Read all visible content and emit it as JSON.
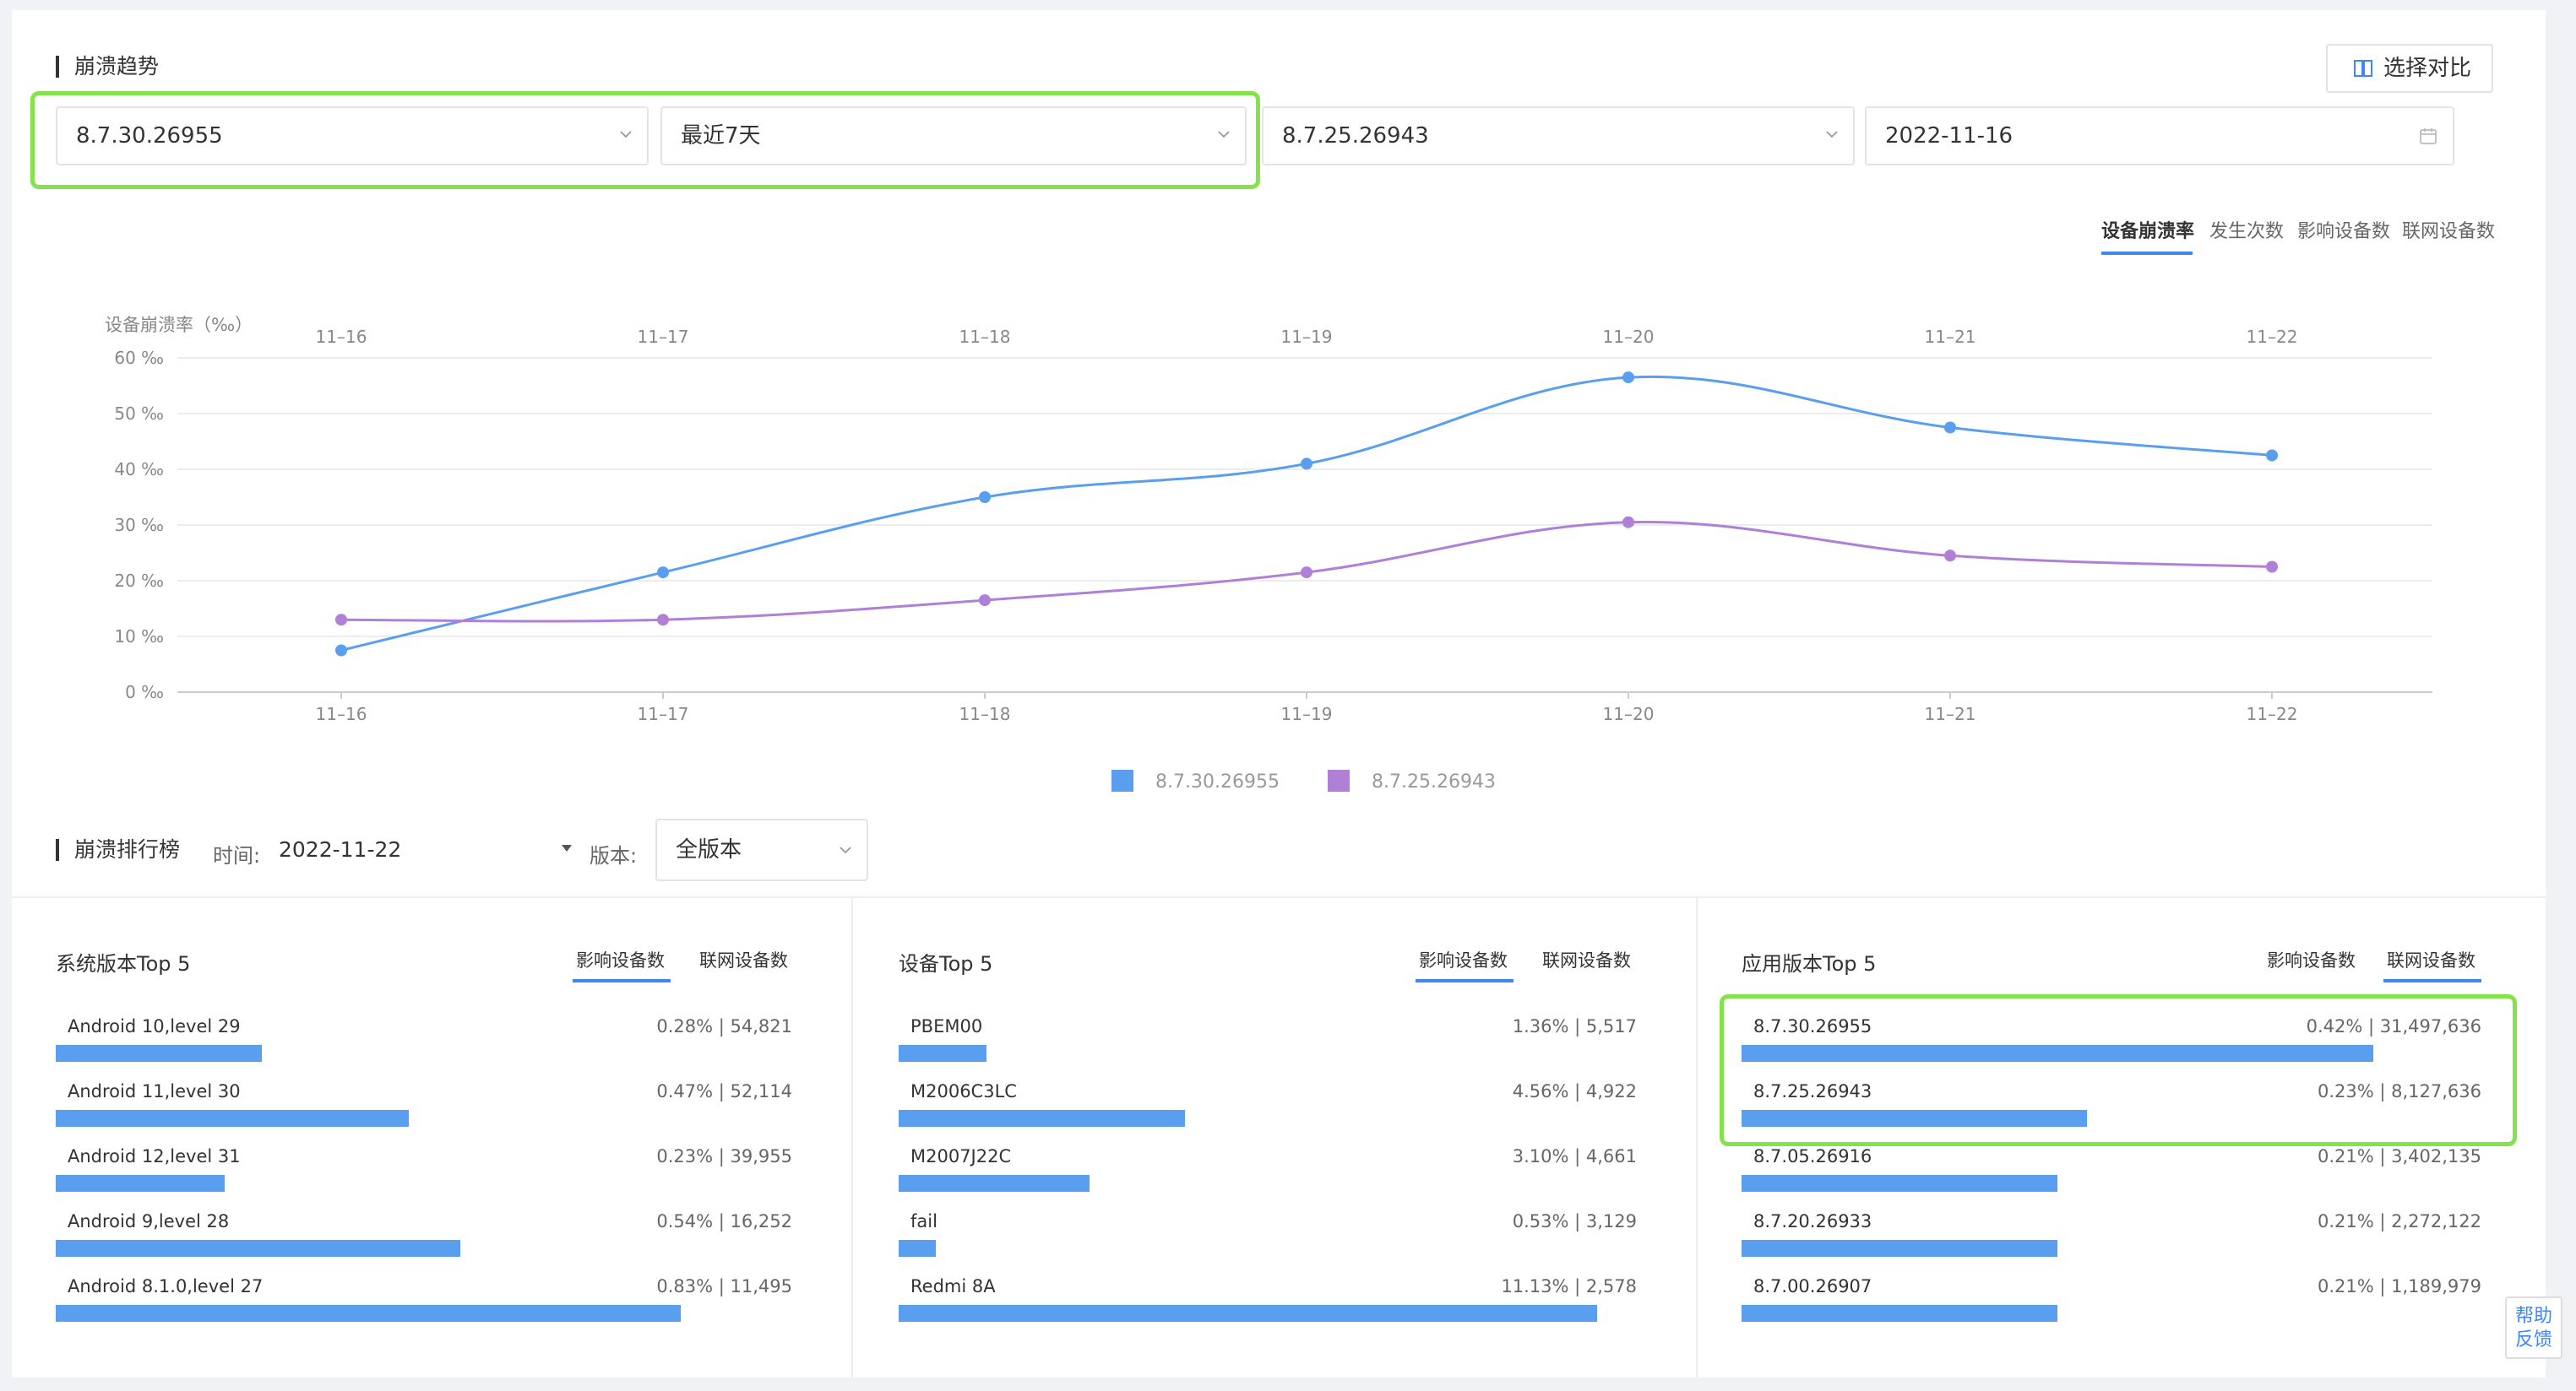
{
  "trend": {
    "title": "崩溃趋势",
    "compare_button": "选择对比",
    "version_a": "8.7.30.26955",
    "range_a": "最近7天",
    "version_b": "8.7.25.26943",
    "date_b": "2022-11-16",
    "metric_tabs": [
      "设备崩溃率",
      "发生次数",
      "影响设备数",
      "联网设备数"
    ],
    "active_metric": 0
  },
  "chart_data": {
    "type": "line",
    "ylabel": "设备崩溃率（‰）",
    "y_ticks": [
      "0 ‰",
      "10 ‰",
      "20 ‰",
      "30 ‰",
      "40 ‰",
      "50 ‰",
      "60 ‰"
    ],
    "ylim": [
      0,
      60
    ],
    "grid": true,
    "categories": [
      "11–16",
      "11–17",
      "11–18",
      "11–19",
      "11–20",
      "11–21",
      "11–22"
    ],
    "legend_position": "bottom-center",
    "series": [
      {
        "name": "8.7.30.26955",
        "color": "#5a9ef0",
        "values": [
          7.5,
          21.5,
          35,
          41,
          56.5,
          47.5,
          42.5
        ]
      },
      {
        "name": "8.7.25.26943",
        "color": "#b07fd6",
        "values": [
          13,
          13,
          16.5,
          21.5,
          30.5,
          24.5,
          22.5
        ]
      }
    ]
  },
  "ranking": {
    "title": "崩溃排行榜",
    "time_label": "时间:",
    "time_value": "2022-11-22",
    "version_label": "版本:",
    "version_value": "全版本"
  },
  "cards": [
    {
      "title": "系统版本Top 5",
      "tabs": [
        "影响设备数",
        "联网设备数"
      ],
      "active_tab": 0,
      "rows": [
        {
          "label": "Android 10,level 29",
          "value": "0.28% | 54,821",
          "fraction": 0.28
        },
        {
          "label": "Android 11,level 30",
          "value": "0.47% | 52,114",
          "fraction": 0.48
        },
        {
          "label": "Android 12,level 31",
          "value": "0.23% | 39,955",
          "fraction": 0.23
        },
        {
          "label": "Android 9,level 28",
          "value": "0.54% | 16,252",
          "fraction": 0.55
        },
        {
          "label": "Android 8.1.0,level 27",
          "value": "0.83% | 11,495",
          "fraction": 0.85
        }
      ]
    },
    {
      "title": "设备Top 5",
      "tabs": [
        "影响设备数",
        "联网设备数"
      ],
      "active_tab": 0,
      "rows": [
        {
          "label": "PBEM00",
          "value": "1.36% | 5,517",
          "fraction": 0.12
        },
        {
          "label": "M2006C3LC",
          "value": "4.56% | 4,922",
          "fraction": 0.39
        },
        {
          "label": "M2007J22C",
          "value": "3.10% | 4,661",
          "fraction": 0.26
        },
        {
          "label": "fail",
          "value": "0.53% | 3,129",
          "fraction": 0.05
        },
        {
          "label": "Redmi 8A",
          "value": "11.13% | 2,578",
          "fraction": 0.95
        }
      ]
    },
    {
      "title": "应用版本Top 5",
      "tabs": [
        "影响设备数",
        "联网设备数"
      ],
      "active_tab": 1,
      "rows": [
        {
          "label": "8.7.30.26955",
          "value": "0.42% | 31,497,636",
          "fraction": 0.86
        },
        {
          "label": "8.7.25.26943",
          "value": "0.23% | 8,127,636",
          "fraction": 0.47
        },
        {
          "label": "8.7.05.26916",
          "value": "0.21% | 3,402,135",
          "fraction": 0.43
        },
        {
          "label": "8.7.20.26933",
          "value": "0.21% | 2,272,122",
          "fraction": 0.43
        },
        {
          "label": "8.7.00.26907",
          "value": "0.21% | 1,189,979",
          "fraction": 0.43
        }
      ]
    }
  ],
  "help": {
    "line1": "帮助",
    "line2": "反馈"
  }
}
